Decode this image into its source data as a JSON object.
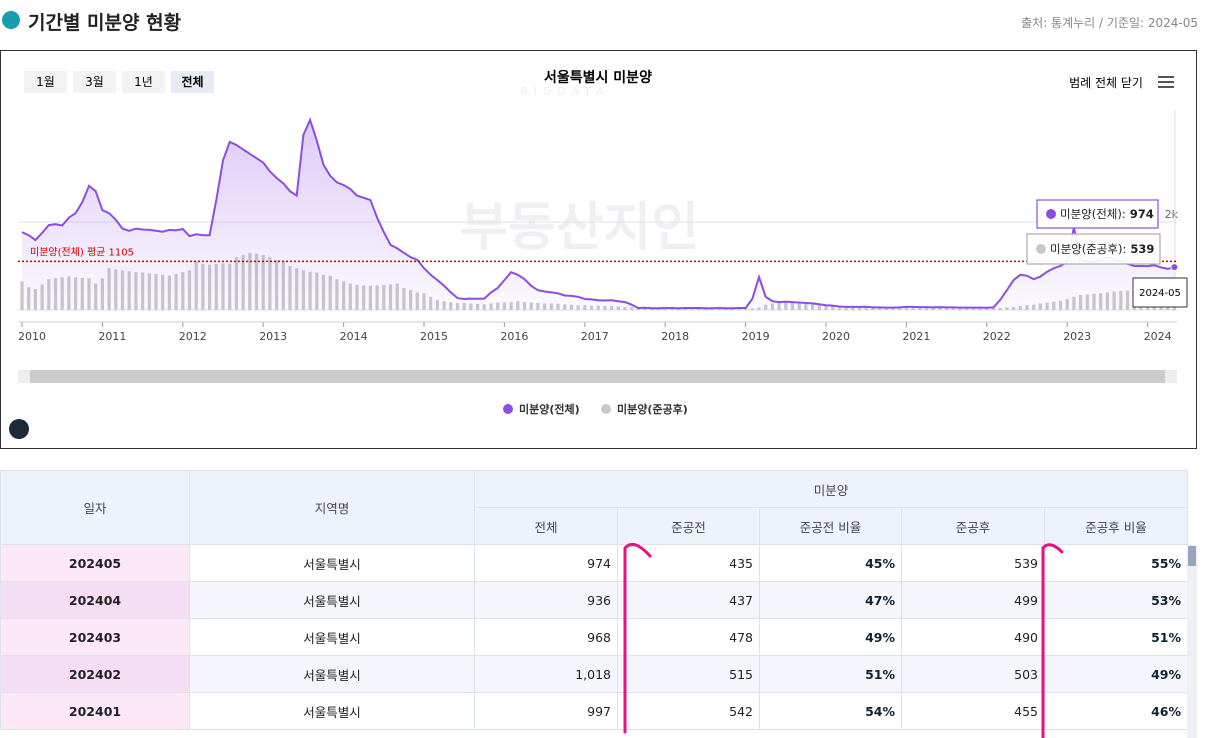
{
  "header": {
    "title": "기간별 미분양 현황",
    "source": "출처: 통계누리 / 기준일: 2024-05"
  },
  "controls": {
    "ranges": [
      "1월",
      "3월",
      "1년",
      "전체"
    ],
    "legend_toggle": "범례 전체 닫기"
  },
  "watermark": {
    "top": "BIGDATA",
    "main": "부동산지인"
  },
  "chart_data": {
    "type": "line_bar",
    "title": "서울특별시 미분양",
    "categories": [
      "2010",
      null,
      null,
      null,
      null,
      null,
      null,
      null,
      null,
      null,
      null,
      null,
      "2011",
      null,
      null,
      null,
      null,
      null,
      null,
      null,
      null,
      null,
      null,
      null,
      "2012",
      null,
      null,
      null,
      null,
      null,
      null,
      null,
      null,
      null,
      null,
      null,
      "2013",
      null,
      null,
      null,
      null,
      null,
      null,
      null,
      null,
      null,
      null,
      null,
      "2014",
      null,
      null,
      null,
      null,
      null,
      null,
      null,
      null,
      null,
      null,
      null,
      "2015",
      null,
      null,
      null,
      null,
      null,
      null,
      null,
      null,
      null,
      null,
      null,
      "2016",
      null,
      null,
      null,
      null,
      null,
      null,
      null,
      null,
      null,
      null,
      null,
      "2017",
      null,
      null,
      null,
      null,
      null,
      null,
      null,
      null,
      null,
      null,
      null,
      "2018",
      null,
      null,
      null,
      null,
      null,
      null,
      null,
      null,
      null,
      null,
      null,
      "2019",
      null,
      null,
      null,
      null,
      null,
      null,
      null,
      null,
      null,
      null,
      null,
      "2020",
      null,
      null,
      null,
      null,
      null,
      null,
      null,
      null,
      null,
      null,
      null,
      "2021",
      null,
      null,
      null,
      null,
      null,
      null,
      null,
      null,
      null,
      null,
      null,
      "2022",
      null,
      null,
      null,
      null,
      null,
      null,
      null,
      null,
      null,
      null,
      null,
      "2023",
      null,
      null,
      null,
      null,
      null,
      null,
      null,
      null,
      null,
      null,
      null,
      "2024",
      null,
      null,
      null,
      null
    ],
    "series": [
      {
        "name": "미분양(전체)",
        "color": "#8a4fe0",
        "kind": "line",
        "values": [
          1770,
          1700,
          1590,
          1750,
          1930,
          1950,
          1920,
          2100,
          2200,
          2450,
          2820,
          2700,
          2270,
          2200,
          2050,
          1850,
          1800,
          1850,
          1830,
          1820,
          1800,
          1780,
          1820,
          1810,
          1840,
          1680,
          1720,
          1700,
          1700,
          2500,
          3400,
          3820,
          3750,
          3650,
          3550,
          3450,
          3350,
          3150,
          3000,
          2880,
          2700,
          2600,
          3980,
          4320,
          3850,
          3300,
          3050,
          2900,
          2840,
          2750,
          2600,
          2550,
          2500,
          2100,
          1770,
          1480,
          1400,
          1300,
          1200,
          1140,
          950,
          800,
          680,
          550,
          400,
          270,
          250,
          260,
          255,
          260,
          400,
          500,
          680,
          860,
          800,
          700,
          550,
          450,
          420,
          400,
          380,
          330,
          320,
          300,
          250,
          240,
          220,
          215,
          220,
          200,
          180,
          120,
          45,
          50,
          40,
          40,
          45,
          45,
          40,
          45,
          45,
          45,
          40,
          40,
          45,
          40,
          40,
          45,
          45,
          250,
          750,
          300,
          200,
          180,
          190,
          180,
          170,
          160,
          150,
          130,
          110,
          100,
          80,
          70,
          70,
          70,
          75,
          60,
          60,
          55,
          55,
          60,
          70,
          70,
          65,
          65,
          60,
          65,
          60,
          60,
          55,
          55,
          55,
          55,
          50,
          60,
          230,
          450,
          680,
          800,
          780,
          700,
          760,
          870,
          950,
          1000,
          1100,
          1880,
          1150,
          1100,
          1090,
          1150,
          1200,
          1150,
          1110,
          1050,
          1000,
          1000,
          997,
          1018,
          968,
          936,
          974
        ]
      },
      {
        "name": "미분양(준공후)",
        "color": "#c8c8c8",
        "kind": "bar",
        "values": [
          650,
          520,
          480,
          580,
          700,
          720,
          740,
          760,
          740,
          730,
          720,
          600,
          720,
          950,
          920,
          900,
          880,
          860,
          850,
          830,
          820,
          800,
          780,
          820,
          860,
          900,
          1100,
          1050,
          1030,
          1050,
          1060,
          1050,
          1200,
          1250,
          1300,
          1280,
          1250,
          1200,
          1130,
          1100,
          1000,
          950,
          900,
          870,
          850,
          800,
          780,
          700,
          650,
          600,
          570,
          560,
          550,
          560,
          570,
          580,
          600,
          500,
          450,
          400,
          380,
          300,
          230,
          200,
          180,
          160,
          160,
          150,
          140,
          130,
          150,
          170,
          170,
          180,
          200,
          180,
          170,
          160,
          150,
          150,
          140,
          130,
          120,
          110,
          110,
          100,
          100,
          95,
          90,
          80,
          70,
          60,
          50,
          45,
          45,
          45,
          25,
          25,
          25,
          25,
          25,
          25,
          25,
          25,
          25,
          25,
          25,
          25,
          30,
          40,
          60,
          120,
          150,
          160,
          170,
          160,
          150,
          140,
          130,
          110,
          100,
          90,
          75,
          65,
          65,
          65,
          70,
          55,
          55,
          50,
          50,
          55,
          55,
          55,
          50,
          50,
          45,
          50,
          45,
          45,
          40,
          40,
          40,
          40,
          35,
          40,
          50,
          60,
          70,
          90,
          110,
          120,
          150,
          170,
          190,
          210,
          250,
          300,
          340,
          350,
          370,
          380,
          400,
          420,
          430,
          440,
          450,
          460,
          455,
          503,
          490,
          499,
          539
        ]
      }
    ],
    "ylim": [
      0,
      4500
    ],
    "yticks": [
      0,
      {
        "value": 2000,
        "label": "2k"
      }
    ],
    "average": {
      "value": 1105,
      "label": "미분양(전체) 평균 1105",
      "color": "#d40000"
    },
    "tooltip": {
      "date": "2024-05",
      "labels": [
        "미분양(전체):",
        "미분양(준공후):"
      ]
    }
  },
  "table": {
    "headers": [
      "일자",
      "지역명",
      "미분양"
    ],
    "subheaders": [
      "전체",
      "준공전",
      "준공전 비율",
      "준공후",
      "준공후 비율"
    ],
    "rows": [
      [
        "202405",
        "서울특별시",
        "974",
        "435",
        "45%",
        "539",
        "55%"
      ],
      [
        "202404",
        "서울특별시",
        "936",
        "437",
        "47%",
        "499",
        "53%"
      ],
      [
        "202403",
        "서울특별시",
        "968",
        "478",
        "49%",
        "490",
        "51%"
      ],
      [
        "202402",
        "서울특별시",
        "1,018",
        "515",
        "51%",
        "503",
        "49%"
      ],
      [
        "202401",
        "서울특별시",
        "997",
        "542",
        "54%",
        "455",
        "46%"
      ]
    ]
  }
}
